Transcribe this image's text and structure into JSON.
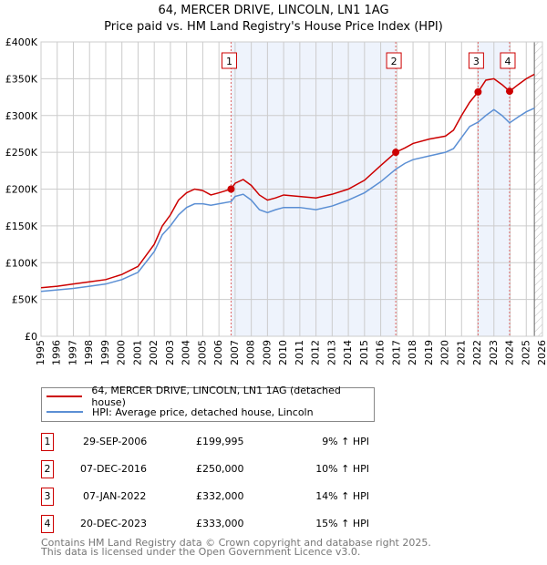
{
  "chart_data": {
    "type": "line",
    "title": "64, MERCER DRIVE, LINCOLN, LN1 1AG",
    "subtitle": "Price paid vs. HM Land Registry's House Price Index (HPI)",
    "xlim": [
      1995,
      2026
    ],
    "ylim": [
      0,
      400000
    ],
    "x_ticks": [
      "1995",
      "1996",
      "1997",
      "1998",
      "1999",
      "2000",
      "2001",
      "2002",
      "2003",
      "2004",
      "2005",
      "2006",
      "2007",
      "2008",
      "2009",
      "2010",
      "2011",
      "2012",
      "2013",
      "2014",
      "2015",
      "2016",
      "2017",
      "2018",
      "2019",
      "2020",
      "2021",
      "2022",
      "2023",
      "2024",
      "2025",
      "2026"
    ],
    "y_ticks": [
      {
        "v": 0,
        "l": "£0"
      },
      {
        "v": 50000,
        "l": "£50K"
      },
      {
        "v": 100000,
        "l": "£100K"
      },
      {
        "v": 150000,
        "l": "£150K"
      },
      {
        "v": 200000,
        "l": "£200K"
      },
      {
        "v": 250000,
        "l": "£250K"
      },
      {
        "v": 300000,
        "l": "£300K"
      },
      {
        "v": 350000,
        "l": "£350K"
      },
      {
        "v": 400000,
        "l": "£400K"
      }
    ],
    "grid": true,
    "series": [
      {
        "name": "64, MERCER DRIVE, LINCOLN, LN1 1AG (detached house)",
        "color": "#cc0000",
        "x": [
          1995,
          1996,
          1997,
          1998,
          1999,
          2000,
          2001,
          2002,
          2002.5,
          2003,
          2003.5,
          2004,
          2004.5,
          2005,
          2005.5,
          2006,
          2006.75,
          2007,
          2007.5,
          2008,
          2008.5,
          2009,
          2009.5,
          2010,
          2011,
          2012,
          2013,
          2014,
          2015,
          2016,
          2016.93,
          2017.5,
          2018,
          2019,
          2020,
          2020.5,
          2021,
          2021.5,
          2022.02,
          2022.5,
          2023,
          2023.5,
          2023.97,
          2024.5,
          2025,
          2025.5
        ],
        "y": [
          66000,
          68000,
          71000,
          74000,
          77000,
          84000,
          95000,
          125000,
          150000,
          165000,
          185000,
          195000,
          200000,
          198000,
          192000,
          195000,
          199995,
          208000,
          213000,
          205000,
          192000,
          185000,
          188000,
          192000,
          190000,
          188000,
          193000,
          200000,
          212000,
          232000,
          250000,
          256000,
          262000,
          268000,
          272000,
          280000,
          300000,
          318000,
          332000,
          348000,
          350000,
          342000,
          333000,
          342000,
          350000,
          356000
        ]
      },
      {
        "name": "HPI: Average price, detached house, Lincoln",
        "color": "#5b8fd4",
        "x": [
          1995,
          1996,
          1997,
          1998,
          1999,
          2000,
          2001,
          2002,
          2002.5,
          2003,
          2003.5,
          2004,
          2004.5,
          2005,
          2005.5,
          2006,
          2006.75,
          2007,
          2007.5,
          2008,
          2008.5,
          2009,
          2009.5,
          2010,
          2011,
          2012,
          2013,
          2014,
          2015,
          2016,
          2016.93,
          2017.5,
          2018,
          2019,
          2020,
          2020.5,
          2021,
          2021.5,
          2022.02,
          2022.5,
          2023,
          2023.5,
          2023.97,
          2024.5,
          2025,
          2025.5
        ],
        "y": [
          61000,
          63000,
          65000,
          68000,
          71000,
          77000,
          87000,
          115000,
          138000,
          150000,
          165000,
          175000,
          180000,
          180000,
          178000,
          180000,
          183000,
          190000,
          193000,
          185000,
          172000,
          168000,
          172000,
          175000,
          175000,
          172000,
          177000,
          185000,
          195000,
          210000,
          227000,
          235000,
          240000,
          245000,
          250000,
          255000,
          270000,
          285000,
          291000,
          300000,
          308000,
          300000,
          290000,
          298000,
          305000,
          310000
        ]
      }
    ],
    "sales": [
      {
        "n": "1",
        "x": 2006.75,
        "y": 199995,
        "date": "29-SEP-2006",
        "price": "£199,995",
        "hpi": "9% ↑ HPI"
      },
      {
        "n": "2",
        "x": 2016.93,
        "y": 250000,
        "date": "07-DEC-2016",
        "price": "£250,000",
        "hpi": "10% ↑ HPI"
      },
      {
        "n": "3",
        "x": 2022.02,
        "y": 332000,
        "date": "07-JAN-2022",
        "price": "£332,000",
        "hpi": "14% ↑ HPI"
      },
      {
        "n": "4",
        "x": 2023.97,
        "y": 333000,
        "date": "20-DEC-2023",
        "price": "£333,000",
        "hpi": "15% ↑ HPI"
      }
    ],
    "shaded_periods": [
      [
        2006.75,
        2016.93
      ],
      [
        2022.02,
        2023.97
      ]
    ],
    "forecast_hatch_from": 2025.5
  },
  "footer": {
    "line1": "Contains HM Land Registry data © Crown copyright and database right 2025.",
    "line2": "This data is licensed under the Open Government Licence v3.0."
  }
}
